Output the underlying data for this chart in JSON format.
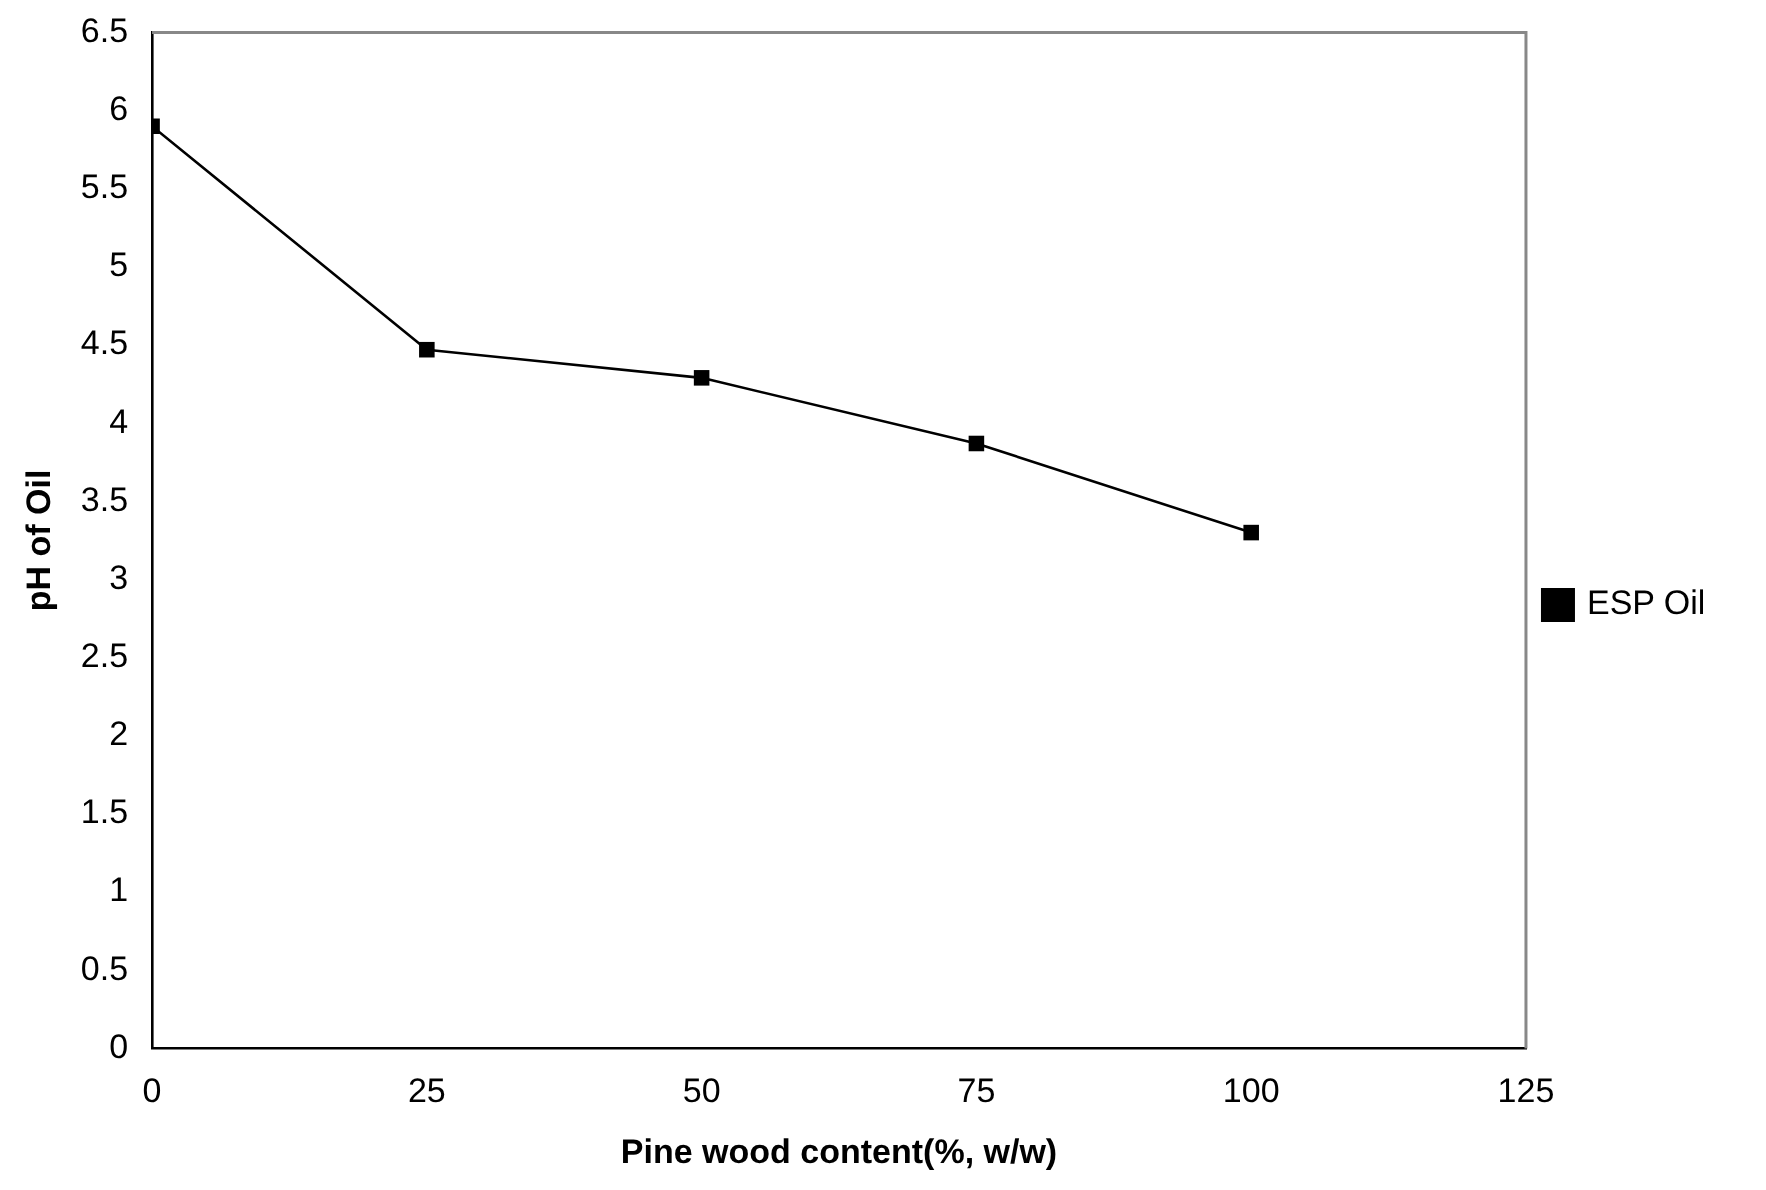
{
  "chart_data": {
    "type": "line",
    "xlabel": "Pine wood content(%, w/w)",
    "ylabel": "pH of Oil",
    "x": [
      0,
      25,
      50,
      75,
      100
    ],
    "series": [
      {
        "name": "ESP Oil",
        "color": "#000000",
        "values": [
          5.9,
          4.47,
          4.29,
          3.87,
          3.3
        ]
      }
    ],
    "xlim": [
      0,
      125
    ],
    "xticks": [
      0,
      25,
      50,
      75,
      100,
      125
    ],
    "ylim": [
      0,
      6.5
    ],
    "yticks": [
      0,
      0.5,
      1,
      1.5,
      2,
      2.5,
      3,
      3.5,
      4,
      4.5,
      5,
      5.5,
      6,
      6.5
    ],
    "grid": false,
    "legend": "right",
    "marker": "square",
    "line_style": "solid"
  }
}
